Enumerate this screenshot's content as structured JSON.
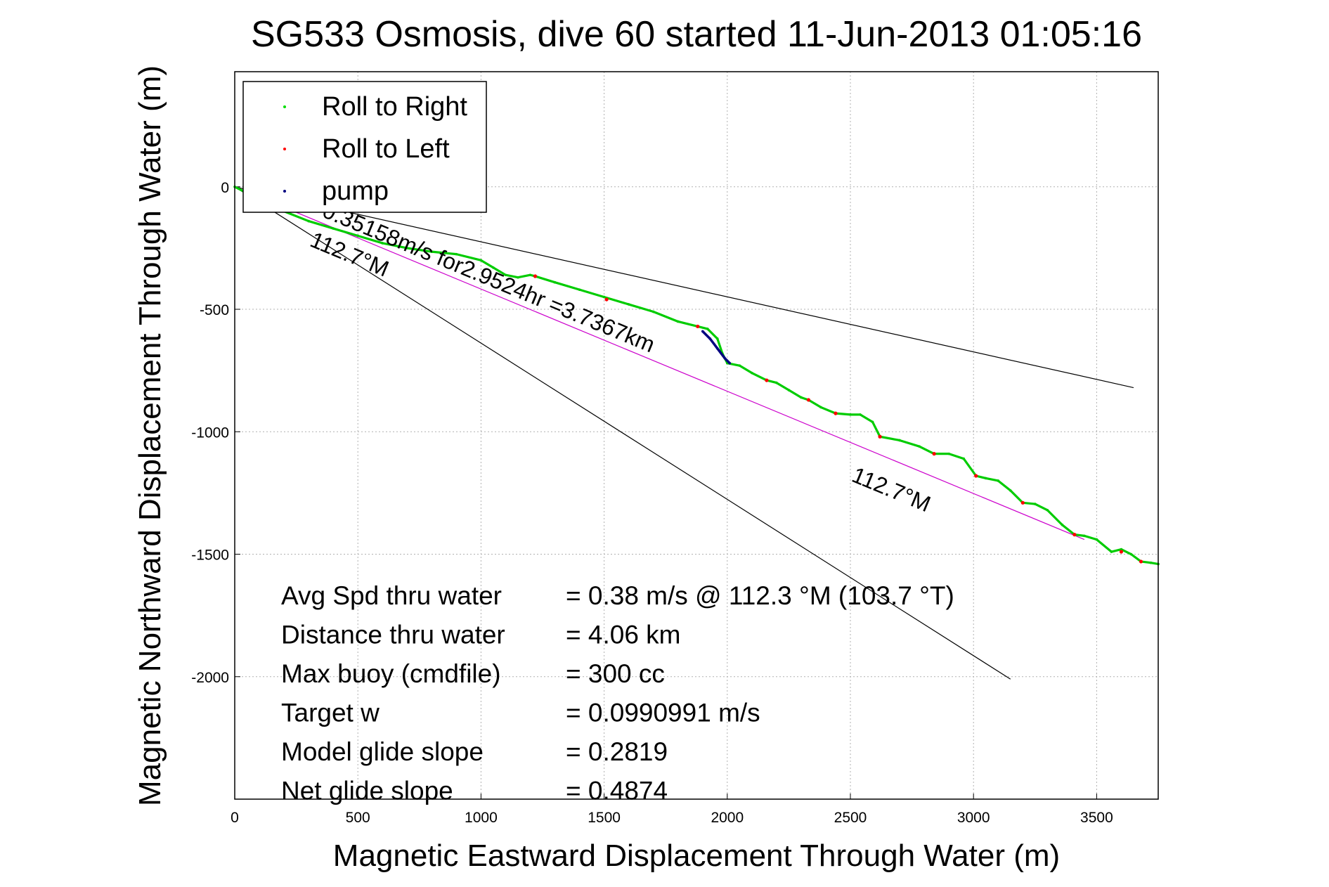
{
  "chart_data": {
    "type": "line",
    "title": "SG533 Osmosis, dive 60 started 11-Jun-2013 01:05:16",
    "xlabel": "Magnetic Eastward Displacement Through Water (m)",
    "ylabel": "Magnetic Northward Displacement Through Water (m)",
    "xlim": [
      0,
      3750
    ],
    "ylim": [
      -2500,
      470
    ],
    "xticks": [
      0,
      500,
      1000,
      1500,
      2000,
      2500,
      3000,
      3500
    ],
    "yticks": [
      0,
      -500,
      -1000,
      -1500,
      -2000
    ],
    "grid": true,
    "legend_position": "top-left",
    "legend": [
      {
        "label": "Roll to Right",
        "color": "#00dd00"
      },
      {
        "label": "Roll to Left",
        "color": "#ff0000"
      },
      {
        "label": "pump",
        "color": "#000080"
      }
    ],
    "series": [
      {
        "name": "Roll to Right",
        "color": "#00cc00",
        "x": [
          0,
          40,
          100,
          200,
          300,
          400,
          500,
          600,
          700,
          800,
          900,
          1000,
          1050,
          1100,
          1150,
          1200,
          1220,
          1300,
          1400,
          1500,
          1600,
          1700,
          1800,
          1880,
          1920,
          1960,
          1980,
          2000,
          2050,
          2100,
          2160,
          2200,
          2250,
          2300,
          2330,
          2380,
          2440,
          2500,
          2540,
          2590,
          2620,
          2700,
          2780,
          2840,
          2900,
          2960,
          3010,
          3050,
          3100,
          3150,
          3200,
          3250,
          3300,
          3360,
          3410,
          3450,
          3500,
          3560,
          3600,
          3640,
          3680,
          3720,
          3750
        ],
        "y": [
          0,
          -20,
          -60,
          -100,
          -140,
          -170,
          -200,
          -230,
          -250,
          -265,
          -275,
          -300,
          -330,
          -360,
          -370,
          -360,
          -365,
          -390,
          -420,
          -450,
          -480,
          -510,
          -550,
          -570,
          -580,
          -620,
          -680,
          -720,
          -730,
          -760,
          -790,
          -800,
          -830,
          -860,
          -870,
          -900,
          -925,
          -930,
          -930,
          -960,
          -1020,
          -1035,
          -1060,
          -1090,
          -1090,
          -1110,
          -1180,
          -1190,
          -1200,
          -1240,
          -1290,
          -1295,
          -1320,
          -1380,
          -1420,
          -1425,
          -1440,
          -1490,
          -1480,
          -1500,
          -1530,
          -1535,
          -1540
        ]
      },
      {
        "name": "Roll to Left",
        "color": "#ff0000",
        "x": [
          1220,
          1510,
          1880,
          2160,
          2330,
          2440,
          2620,
          2840,
          3010,
          3200,
          3410,
          3600,
          3680
        ],
        "y": [
          -365,
          -460,
          -570,
          -790,
          -870,
          -925,
          -1020,
          -1090,
          -1180,
          -1290,
          -1420,
          -1490,
          -1530
        ]
      },
      {
        "name": "pump",
        "color": "#000080",
        "x": [
          1900,
          1930,
          1960,
          1990,
          2010
        ],
        "y": [
          -590,
          -620,
          -660,
          -700,
          -720
        ]
      }
    ],
    "reference_lines": [
      {
        "x": [
          0,
          3650
        ],
        "y": [
          0,
          -820
        ],
        "color": "#000000"
      },
      {
        "x": [
          0,
          3150
        ],
        "y": [
          0,
          -2010
        ],
        "color": "#000000"
      },
      {
        "x": [
          0,
          3450
        ],
        "y": [
          0,
          -1440
        ],
        "color": "#cc00cc"
      }
    ],
    "annotations": [
      {
        "text": "0.35158m/s for2.9524hr =3.7367km",
        "x": 350,
        "y": -120,
        "rotation": 22.5
      },
      {
        "text": "112.7°M",
        "x": 300,
        "y": -240,
        "rotation": 22.5
      },
      {
        "text": "112.7°M",
        "x": 2500,
        "y": -1200,
        "rotation": 22.5
      }
    ],
    "stats": [
      {
        "label": "Avg Spd thru water",
        "value": "=  0.38 m/s @ 112.3 °M (103.7 °T)"
      },
      {
        "label": "Distance thru water",
        "value": "=  4.06 km"
      },
      {
        "label": "Max buoy (cmdfile)",
        "value": "= 300 cc"
      },
      {
        "label": "Target w",
        "value": "= 0.0990991 m/s"
      },
      {
        "label": "Model glide slope",
        "value": "= 0.2819"
      },
      {
        "label": "Net glide slope",
        "value": "= 0.4874"
      }
    ]
  }
}
